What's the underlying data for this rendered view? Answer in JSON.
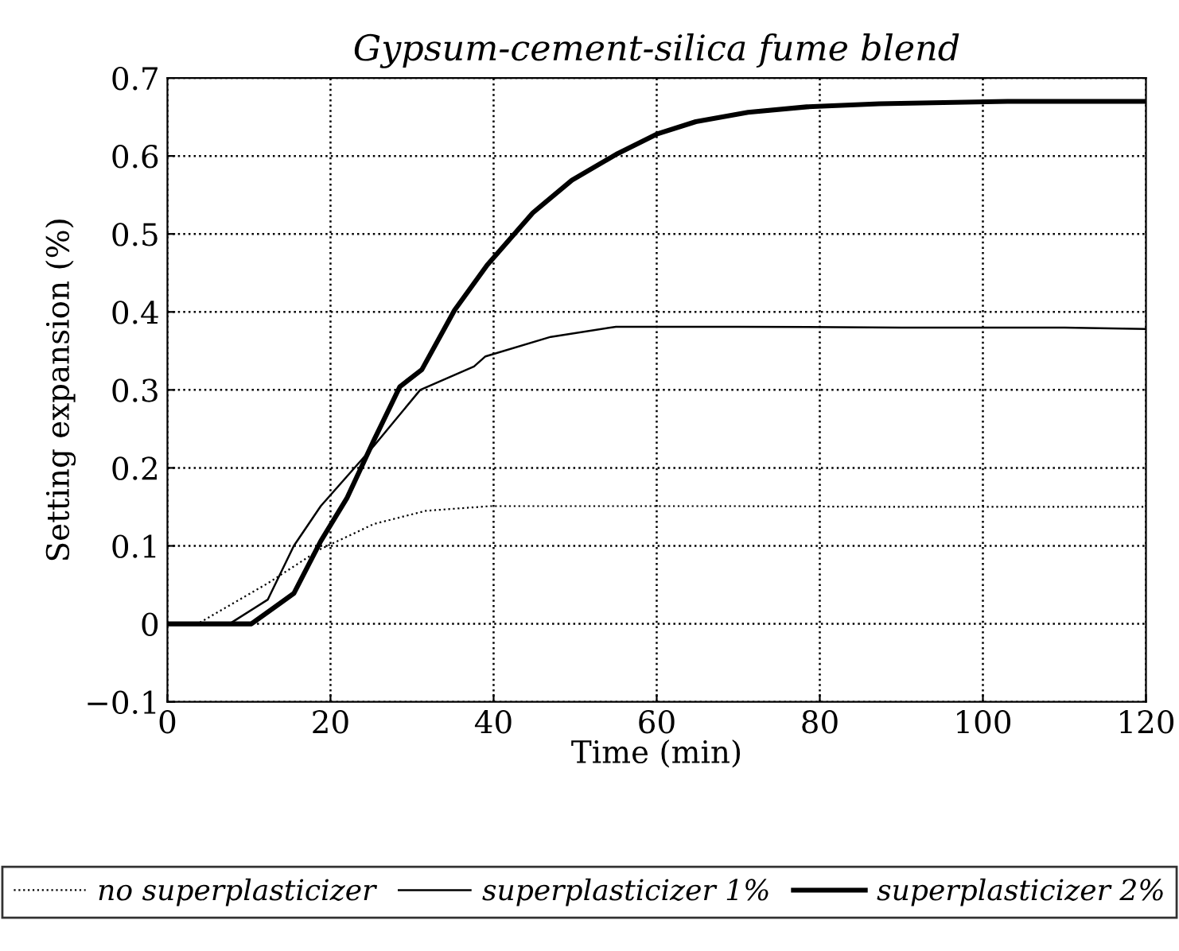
{
  "chart_data": {
    "type": "line",
    "title": "Gypsum-cement-silica fume blend",
    "xlabel": "Time (min)",
    "ylabel": "Setting expansion (%)",
    "xlim": [
      0,
      120
    ],
    "xticks": [
      0,
      20,
      40,
      60,
      80,
      100,
      120
    ],
    "ylim": [
      -0.1,
      0.7
    ],
    "yticks": [
      {
        "value": -0.1,
        "label": "−0.1"
      },
      0,
      0.1,
      0.2,
      0.3,
      0.4,
      0.5,
      0.6,
      0.7
    ],
    "grid": true,
    "legend": "bottom",
    "marker": "none",
    "series": [
      {
        "name": "no superplasticizer",
        "color": "#000000",
        "line_style": "dotted",
        "x": [
          0,
          3.7,
          12.3,
          18.8,
          25.3,
          31.7,
          39.6,
          50,
          70,
          90,
          120
        ],
        "values": [
          0,
          0,
          0.052,
          0.096,
          0.128,
          0.145,
          0.151,
          0.151,
          0.151,
          0.15,
          0.15
        ]
      },
      {
        "name": "superplasticizer 1%",
        "color": "#000000",
        "line_style": "solid",
        "x": [
          0,
          7.6,
          12.3,
          15.5,
          18.8,
          25.3,
          31,
          37.6,
          39,
          47,
          55,
          70,
          90,
          110,
          120
        ],
        "values": [
          0,
          0,
          0.031,
          0.1,
          0.151,
          0.228,
          0.3,
          0.33,
          0.343,
          0.368,
          0.381,
          0.381,
          0.38,
          0.38,
          0.378
        ]
      },
      {
        "name": "superplasticizer 2%",
        "color": "#000000",
        "line_style": "solid",
        "x": [
          0,
          10.3,
          15.5,
          18.8,
          22,
          25.3,
          28.5,
          31.2,
          35.2,
          39.2,
          44.8,
          49.6,
          55.2,
          60,
          64.8,
          71.2,
          78.4,
          87.3,
          103,
          120
        ],
        "values": [
          0,
          0,
          0.039,
          0.106,
          0.161,
          0.235,
          0.304,
          0.326,
          0.402,
          0.46,
          0.527,
          0.569,
          0.603,
          0.628,
          0.644,
          0.656,
          0.663,
          0.667,
          0.67,
          0.67
        ]
      }
    ]
  }
}
